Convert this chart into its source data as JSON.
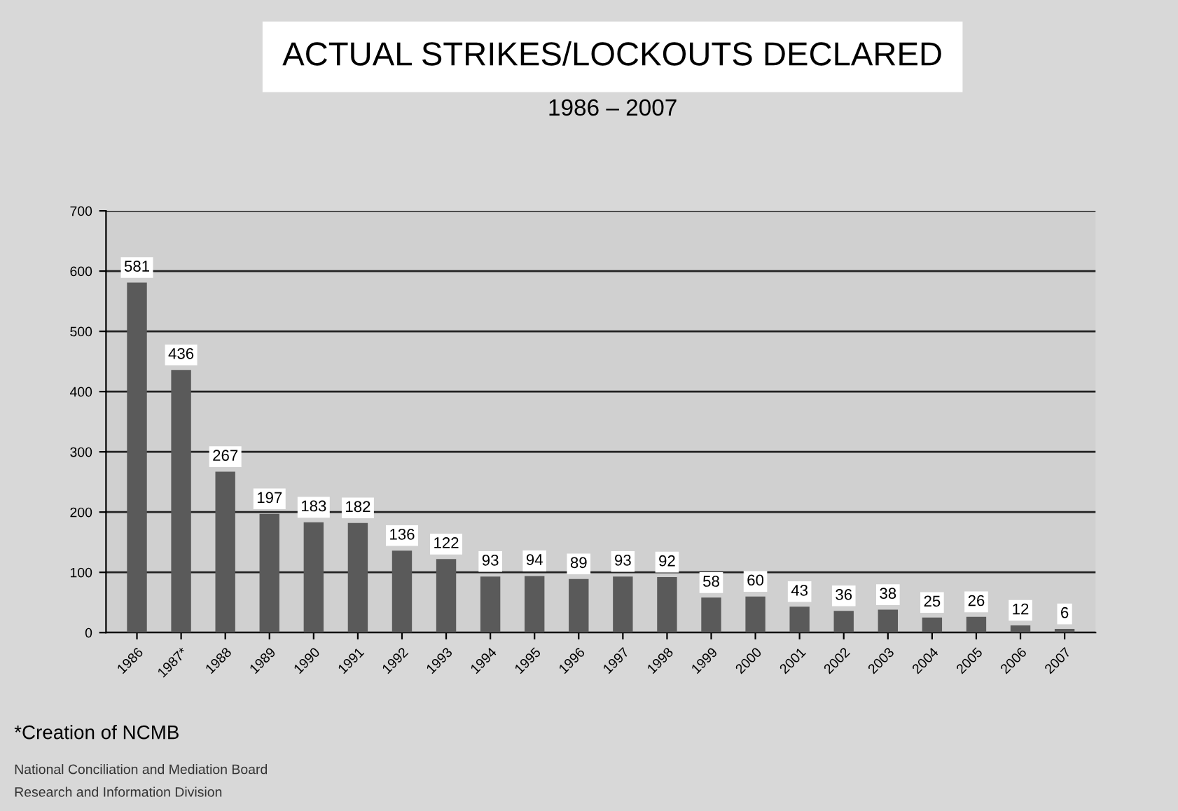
{
  "chart_data": {
    "type": "bar",
    "title": "ACTUAL STRIKES/LOCKOUTS DECLARED",
    "subtitle": "1986 – 2007",
    "categories": [
      "1986",
      "1987*",
      "1988",
      "1989",
      "1990",
      "1991",
      "1992",
      "1993",
      "1994",
      "1995",
      "1996",
      "1997",
      "1998",
      "1999",
      "2000",
      "2001",
      "2002",
      "2003",
      "2004",
      "2005",
      "2006",
      "2007"
    ],
    "values": [
      581,
      436,
      267,
      197,
      183,
      182,
      136,
      122,
      93,
      94,
      89,
      93,
      92,
      58,
      60,
      43,
      36,
      38,
      25,
      26,
      12,
      6
    ],
    "color": "#5a5a5a",
    "ylim": [
      0,
      700
    ],
    "yticks": [
      0,
      100,
      200,
      300,
      400,
      500,
      600,
      700
    ],
    "grid": "y",
    "data_labels": true,
    "annotations": [
      "*Creation of NCMB",
      "National Conciliation and Mediation Board",
      "Research and Information Division"
    ]
  }
}
